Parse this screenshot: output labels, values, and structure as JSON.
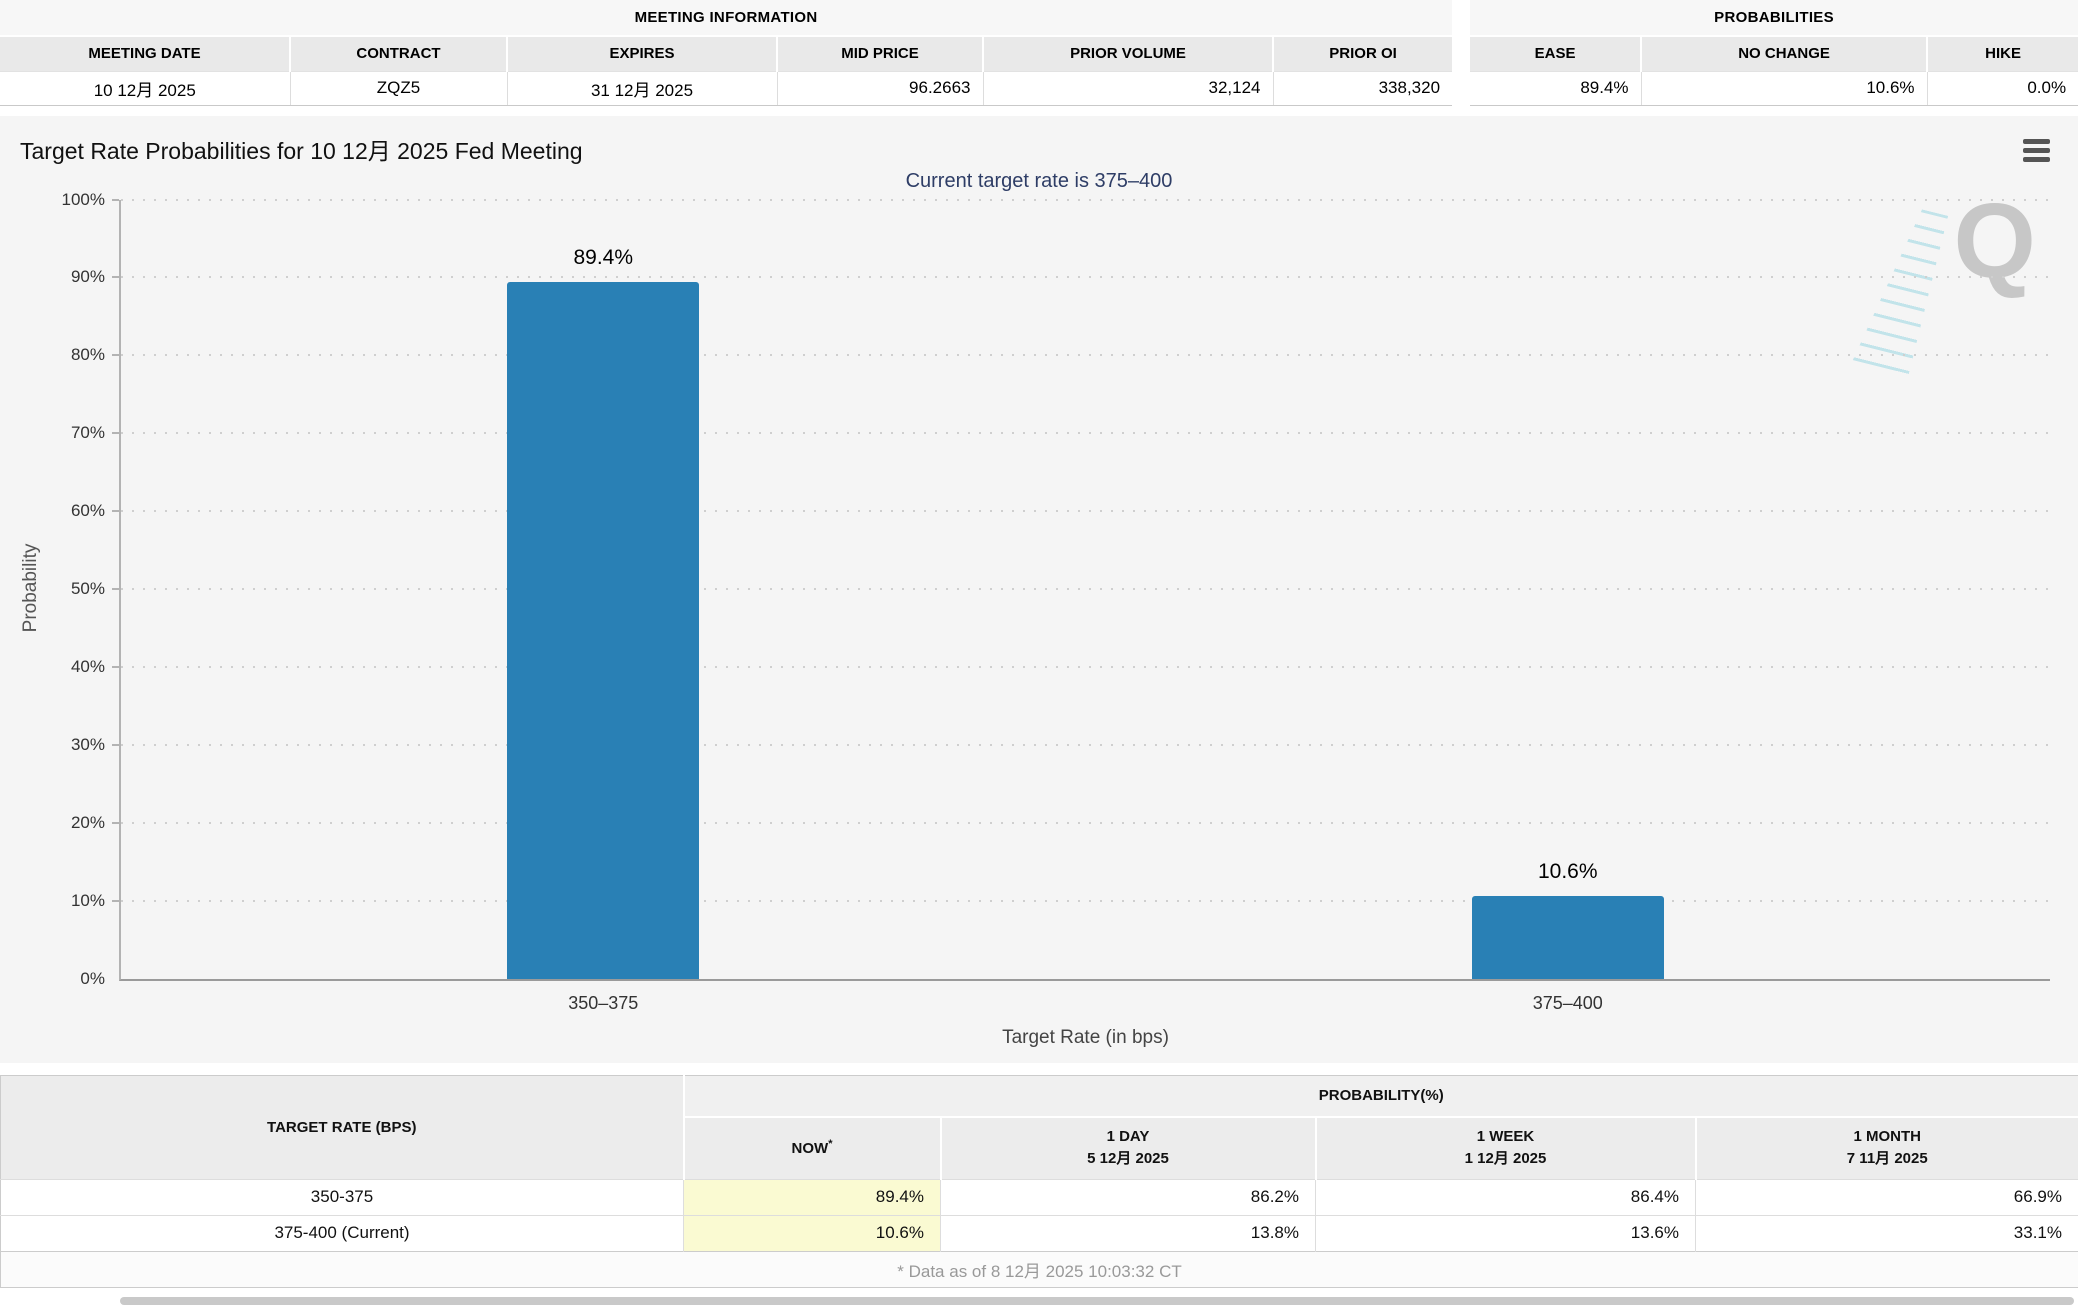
{
  "meeting_information": {
    "title": "MEETING INFORMATION",
    "columns": [
      "MEETING DATE",
      "CONTRACT",
      "EXPIRES",
      "MID PRICE",
      "PRIOR VOLUME",
      "PRIOR OI"
    ],
    "values": [
      "10 12月 2025",
      "ZQZ5",
      "31 12月 2025",
      "96.2663",
      "32,124",
      "338,320"
    ]
  },
  "probabilities_summary": {
    "title": "PROBABILITIES",
    "columns": [
      "EASE",
      "NO CHANGE",
      "HIKE"
    ],
    "values": [
      "89.4%",
      "10.6%",
      "0.0%"
    ]
  },
  "chart": {
    "title": "Target Rate Probabilities for 10 12月 2025 Fed Meeting",
    "subtitle": "Current target rate is 375–400",
    "menu_icon": "hamburger-icon",
    "watermark_letter": "Q"
  },
  "chart_data": {
    "type": "bar",
    "categories": [
      "350–375",
      "375–400"
    ],
    "values": [
      89.4,
      10.6
    ],
    "bar_labels": [
      "89.4%",
      "10.6%"
    ],
    "title": "Target Rate Probabilities for 10 12月 2025 Fed Meeting",
    "subtitle": "Current target rate is 375–400",
    "xlabel": "Target Rate (in bps)",
    "ylabel": "Probability",
    "ylim": [
      0,
      100
    ],
    "ytick_step": 10,
    "ytick_suffix": "%",
    "grid": "horizontal-dotted",
    "legend": "none",
    "bar_color": "#2980b5"
  },
  "bottom_table": {
    "col1_header": "TARGET RATE (BPS)",
    "group_header": "PROBABILITY(%)",
    "subheaders": [
      {
        "line1": "NOW",
        "sup": "*",
        "line2": ""
      },
      {
        "line1": "1 DAY",
        "line2": "5 12月 2025"
      },
      {
        "line1": "1 WEEK",
        "line2": "1 12月 2025"
      },
      {
        "line1": "1 MONTH",
        "line2": "7 11月 2025"
      }
    ],
    "rows": [
      {
        "label": "350-375",
        "now": "89.4%",
        "day": "86.2%",
        "week": "86.4%",
        "month": "66.9%"
      },
      {
        "label": "375-400 (Current)",
        "now": "10.6%",
        "day": "13.8%",
        "week": "13.6%",
        "month": "33.1%"
      }
    ],
    "footnote": "* Data as of 8 12月 2025 10:03:32 CT"
  },
  "colors": {
    "bar": "#2980b5",
    "subtitle": "#2e3d66",
    "now_highlight": "#fafad2",
    "header_bg": "#e9e9e9",
    "chart_bg": "#f5f5f5"
  }
}
